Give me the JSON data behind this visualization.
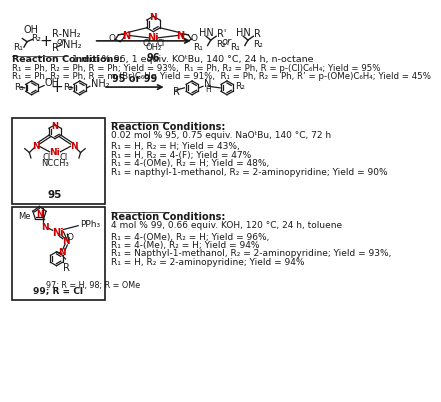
{
  "bg_color": "#ffffff",
  "section1": {
    "rc_bold": "Reaction Conditions:",
    "rc_text": " 1 mol % 96, 1 equiv. KOᵗBu, 140 °C, 24 h, n-octane",
    "results": [
      "R₁ = Ph, R₂ = Ph, R = Ph; Yield = 93%,  R₁ = Ph, R₂ = Ph, R = p-(Cl)C₆H₄; Yield = 95%",
      "R₁ = Ph, R₂ = Ph, R = m-(Br)C₆H₄; Yield = 91%,  R₁ = Ph, R₂ = Ph, R’ = p-(OMe)C₆H₄; Yield = 45%"
    ]
  },
  "section2": {
    "rc_bold": "Reaction Conditions:",
    "rc_text": "0.02 mol % 95, 0.75 equiv. NaOᵗBu, 140 °C, 72 h",
    "results": [
      "R₁ = H, R₂ = H; Yield = 43%,",
      "R₁ = H, R₂ = 4-(F); Yield = 47%",
      "R₁ = 4-(OMe), R₂ = H; Yield = 48%,",
      "R₁ = napthyl-1-methanol, R₂ = 2-aminopyridine; Yield = 90%"
    ]
  },
  "section3": {
    "rc_bold": "Reaction Conditions:",
    "rc_text": "4 mol % 99, 0.66 equiv. KOH, 120 °C, 24 h, toluene",
    "results": [
      "R₁ = 4-(OMe), R₂ = H; Yield = 96%,",
      "R₁ = 4-(Me), R₂ = H; Yield = 94%",
      "R₁ = Napthyl-1-methanol, R₂ = 2-aminopyridine; Yield = 93%,",
      "R₁ = H, R₂ = 2-aminopyridine; Yield = 94%"
    ]
  },
  "colors": {
    "black": "#1a1a1a",
    "red": "#cc0000"
  }
}
